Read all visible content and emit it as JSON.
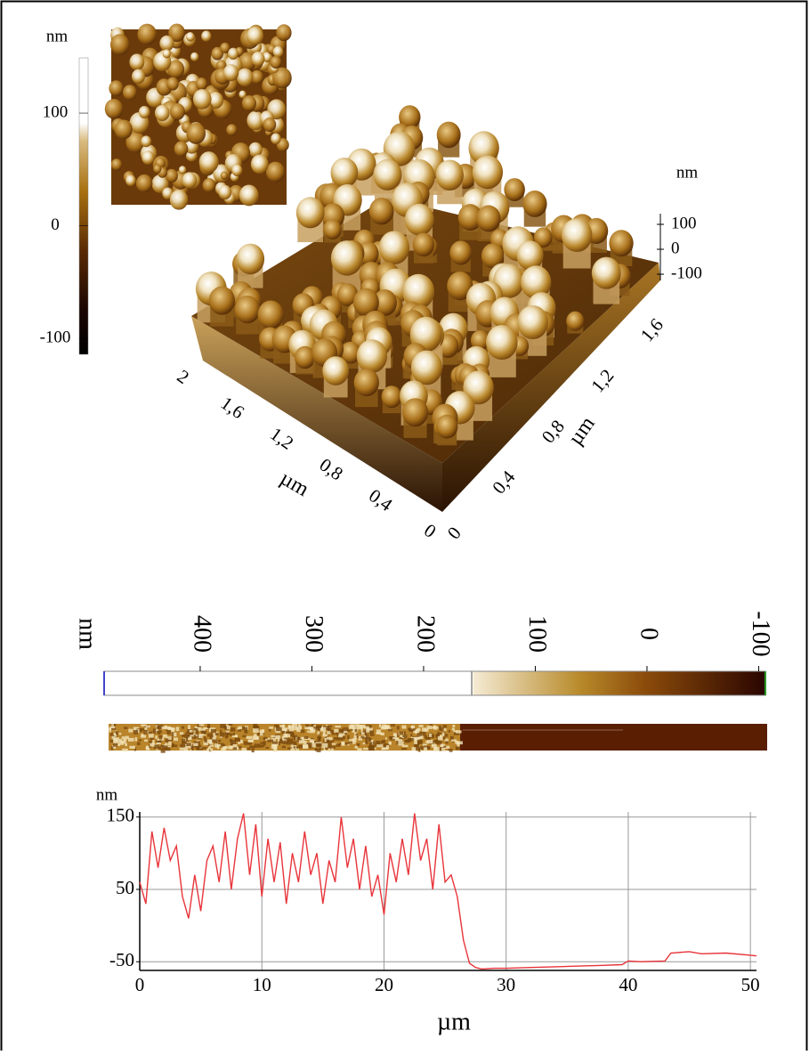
{
  "colorbar_2d": {
    "label": "nm",
    "lim": [
      -114,
      149
    ],
    "ticks": [
      100,
      0,
      -100
    ]
  },
  "surface_3d": {
    "z_label": "nm",
    "z_ticks": [
      100,
      0,
      -100
    ],
    "x_label": "µm",
    "x_ticks": [
      "0",
      "0,4",
      "0,8",
      "1,2",
      "1,6",
      "2"
    ],
    "y_label": "µm",
    "y_ticks": [
      "0",
      "0,4",
      "0,8",
      "1,2",
      "1,6"
    ]
  },
  "colorbar_profile": {
    "label": "nm",
    "lim": [
      486,
      -106
    ],
    "ticks": [
      400,
      300,
      200,
      100,
      0,
      -100
    ]
  },
  "chart_data": {
    "type": "line",
    "y_label": "nm",
    "x_label": "µm",
    "xlim": [
      0,
      50.5
    ],
    "ylim": [
      -62,
      157
    ],
    "xticks": [
      0,
      10,
      20,
      30,
      40,
      50
    ],
    "yticks": [
      -50,
      50,
      150
    ],
    "grid": true,
    "x": [
      0,
      0.5,
      1,
      1.5,
      2,
      2.5,
      3,
      3.5,
      4,
      4.5,
      5,
      5.5,
      6,
      6.5,
      7,
      7.5,
      8,
      8.5,
      9,
      9.5,
      10,
      10.5,
      11,
      11.5,
      12,
      12.5,
      13,
      13.5,
      14,
      14.5,
      15,
      15.5,
      16,
      16.5,
      17,
      17.5,
      18,
      18.5,
      19,
      19.5,
      20,
      20.5,
      21,
      21.5,
      22,
      22.5,
      23,
      23.5,
      24,
      24.5,
      25,
      25.5,
      26,
      26.5,
      27,
      27.5,
      28,
      29,
      30,
      32,
      34,
      36,
      38,
      39.5,
      40,
      41,
      43,
      43.5,
      45,
      46,
      48,
      50,
      50.5
    ],
    "series": [
      {
        "color": "#e8343a",
        "values": [
          60,
          30,
          130,
          80,
          135,
          90,
          110,
          40,
          10,
          70,
          20,
          90,
          110,
          60,
          130,
          50,
          120,
          155,
          70,
          140,
          40,
          120,
          60,
          115,
          30,
          100,
          60,
          130,
          70,
          100,
          30,
          90,
          60,
          150,
          80,
          120,
          50,
          110,
          40,
          70,
          15,
          100,
          60,
          120,
          70,
          155,
          90,
          120,
          50,
          140,
          60,
          70,
          40,
          -20,
          -52,
          -58,
          -60,
          -59,
          -59,
          -58,
          -57,
          -56,
          -55,
          -54,
          -49,
          -50,
          -49,
          -38,
          -36,
          -39,
          -38,
          -41,
          -42
        ]
      }
    ]
  }
}
